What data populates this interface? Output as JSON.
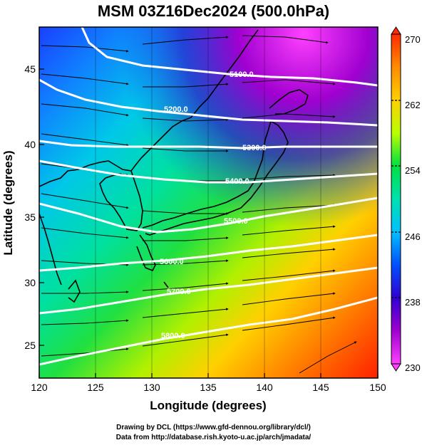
{
  "title": "MSM 03Z16Dec2024 (500.0hPa)",
  "map": {
    "lon_range": [
      120,
      150
    ],
    "lat_range": [
      22.4,
      48
    ],
    "x_ticks": [
      "120",
      "125",
      "130",
      "135",
      "140",
      "145",
      "150"
    ],
    "y_ticks": [
      "25",
      "30",
      "35",
      "40",
      "45"
    ],
    "x_label": "Longitude (degrees)",
    "y_label": "Latitude  (degrees)",
    "contour_labels": [
      "5100.0",
      "5200.0",
      "5300.0",
      "5400.0",
      "5500.0",
      "5600.0",
      "5700.0",
      "5800.0"
    ],
    "shading": "temperature-rainbow",
    "vectors": "wind-streamlines"
  },
  "colorbar": {
    "min": "230",
    "max": "270",
    "labels": [
      "270",
      "262",
      "254",
      "246",
      "238",
      "230"
    ],
    "colors": [
      "#ff2a00",
      "#ff8c00",
      "#ffd000",
      "#b8ff00",
      "#00e040",
      "#00e0b0",
      "#00c0ff",
      "#0050ff",
      "#3000d0",
      "#a000d0",
      "#ff40ff"
    ]
  },
  "credits": {
    "line1": "Drawing by DCL (https://www.gfd-dennou.org/library/dcl/)",
    "line2": "Data from http://database.rish.kyoto-u.ac.jp/arch/jmadata/"
  }
}
